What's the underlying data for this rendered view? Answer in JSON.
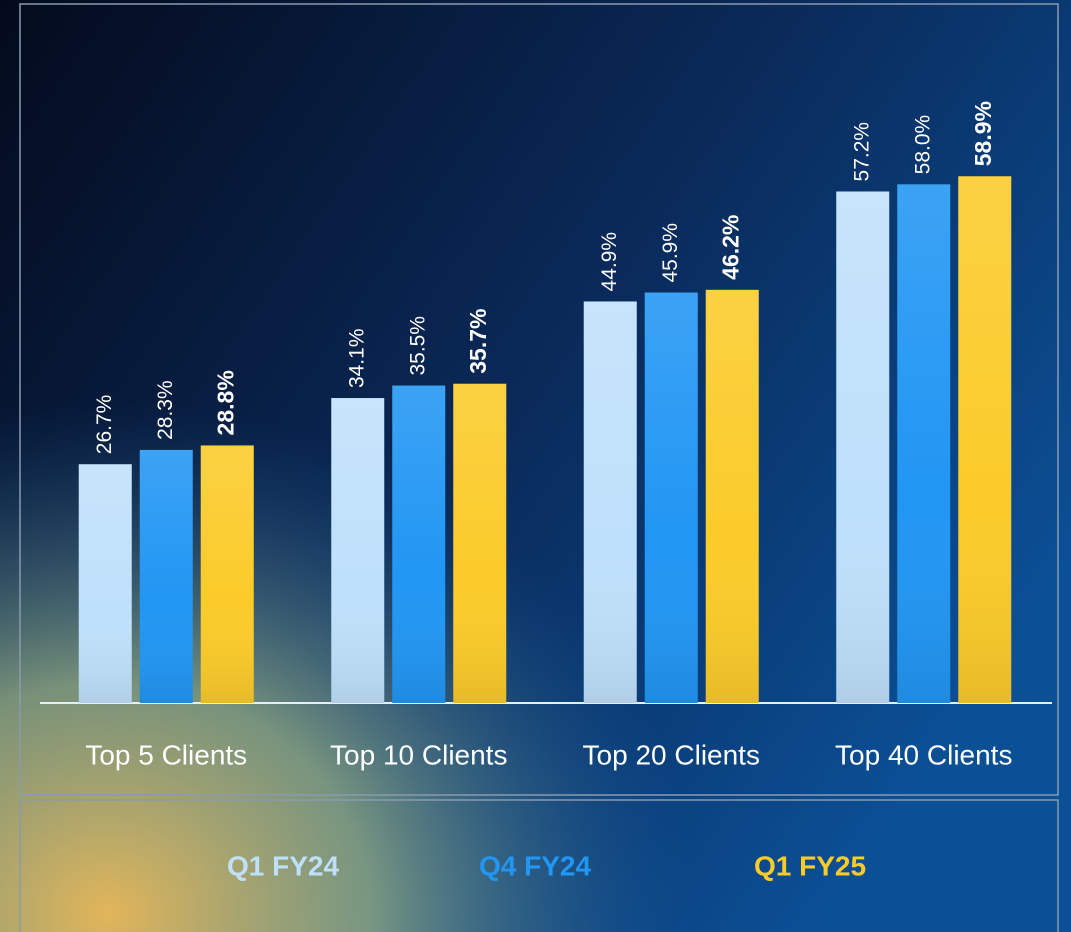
{
  "chart_data": {
    "type": "bar",
    "categories": [
      "Top 5 Clients",
      "Top 10 Clients",
      "Top 20 Clients",
      "Top 40 Clients"
    ],
    "series": [
      {
        "name": "Q1 FY24",
        "color": "#bfe0fb",
        "values": [
          26.7,
          34.1,
          44.9,
          57.2
        ],
        "value_labels": [
          "26.7%",
          "34.1%",
          "44.9%",
          "57.2%"
        ]
      },
      {
        "name": "Q4 FY24",
        "color": "#2196f3",
        "values": [
          28.3,
          35.5,
          45.9,
          58.0
        ],
        "value_labels": [
          "28.3%",
          "35.5%",
          "45.9%",
          "58.0%"
        ]
      },
      {
        "name": "Q1 FY25",
        "color": "#fbcb2a",
        "values": [
          28.8,
          35.7,
          46.2,
          58.9
        ],
        "value_labels": [
          "28.8%",
          "35.7%",
          "46.2%",
          "58.9%"
        ]
      }
    ],
    "ylim": [
      0,
      70
    ]
  }
}
